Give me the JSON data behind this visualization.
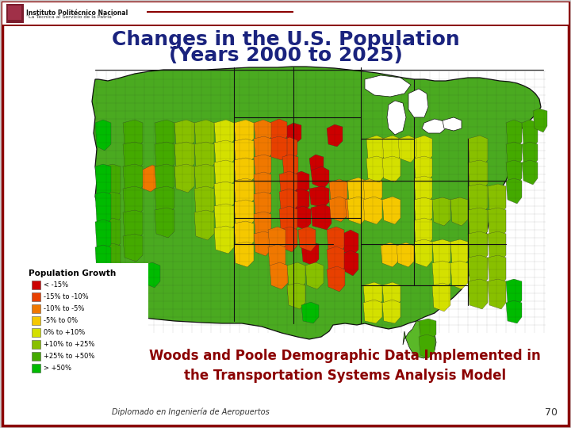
{
  "title_line1": "Changes in the U.S. Population",
  "title_line2": "(Years 2000 to 2025)",
  "title_color": "#1a237e",
  "title_fontsize": 18,
  "subtitle_text": "Woods and Poole Demographic Data Implemented in\nthe Transportation Systems Analysis Model",
  "subtitle_color": "#8b0000",
  "subtitle_fontsize": 12,
  "legend_title": "Population Growth",
  "legend_items": [
    {
      "label": "< -15%",
      "color": "#cc0000"
    },
    {
      "label": "-15% to -10%",
      "color": "#e84000"
    },
    {
      "label": "-10% to -5%",
      "color": "#f07800"
    },
    {
      "label": "-5% to 0%",
      "color": "#f5c800"
    },
    {
      "label": "0% to +10%",
      "color": "#d4e000"
    },
    {
      "label": "+10% to +25%",
      "color": "#88c000"
    },
    {
      "label": "+25% to +50%",
      "color": "#44aa00"
    },
    {
      "label": "> +50%",
      "color": "#00bb00"
    }
  ],
  "footer_text": "Diplomado en Ingeniería de Aeropuertos",
  "page_number": "70",
  "header_inst": "Instituto Politécnico Nacional",
  "header_sub": "“La Técnica al Servicio de la Patria”",
  "border_color": "#8b0000",
  "bg_color": "#ffffff",
  "header_bar_color": "#8b0000",
  "slide_outer_bg": "#cccccc"
}
